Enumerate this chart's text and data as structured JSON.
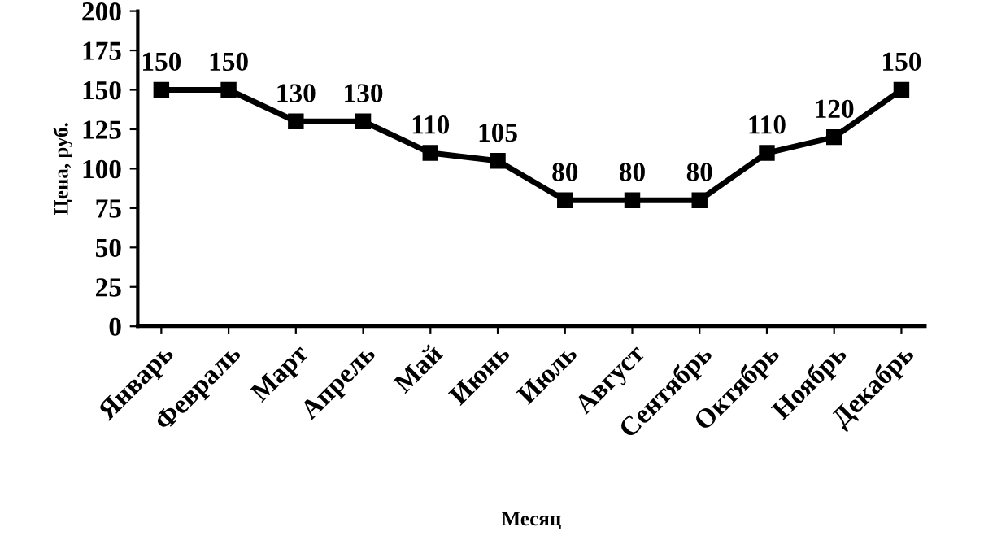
{
  "chart_data": {
    "type": "line",
    "xlabel": "Месяц",
    "ylabel": "Цена, руб.",
    "categories": [
      "Январь",
      "Февраль",
      "Март",
      "Апрель",
      "Май",
      "Июнь",
      "Июль",
      "Август",
      "Сентябрь",
      "Октябрь",
      "Ноябрь",
      "Декабрь"
    ],
    "series": [
      {
        "color": "#000000",
        "values": [
          150,
          150,
          130,
          130,
          110,
          105,
          80,
          80,
          80,
          110,
          120,
          150
        ]
      }
    ],
    "ylim": [
      0,
      200
    ],
    "yticks": [
      0,
      25,
      50,
      75,
      100,
      125,
      150,
      175,
      200
    ],
    "data_labels": true,
    "marker": "square",
    "line_style": "solid",
    "grid": false,
    "legend": false
  }
}
